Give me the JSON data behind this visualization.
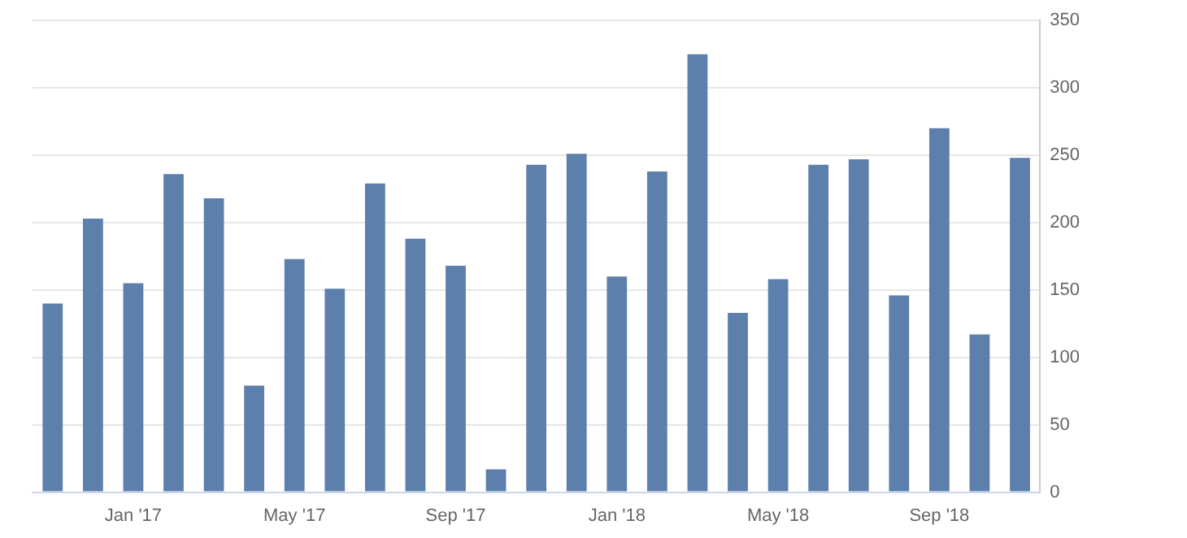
{
  "chart_data": {
    "type": "bar",
    "categories": [
      null,
      null,
      "Jan '17",
      null,
      null,
      null,
      "May '17",
      null,
      null,
      null,
      "Sep '17",
      null,
      null,
      null,
      "Jan '18",
      null,
      null,
      null,
      "May '18",
      null,
      null,
      null,
      "Sep '18",
      null,
      null
    ],
    "values": [
      140,
      203,
      155,
      236,
      218,
      79,
      173,
      151,
      229,
      188,
      168,
      17,
      243,
      251,
      160,
      238,
      325,
      133,
      158,
      243,
      247,
      146,
      270,
      117,
      248
    ],
    "color": "#5d7fab",
    "ylim": [
      0,
      350
    ],
    "yticks": [
      0,
      50,
      100,
      150,
      200,
      250,
      300,
      350
    ],
    "grid": "y",
    "legend": false
  }
}
